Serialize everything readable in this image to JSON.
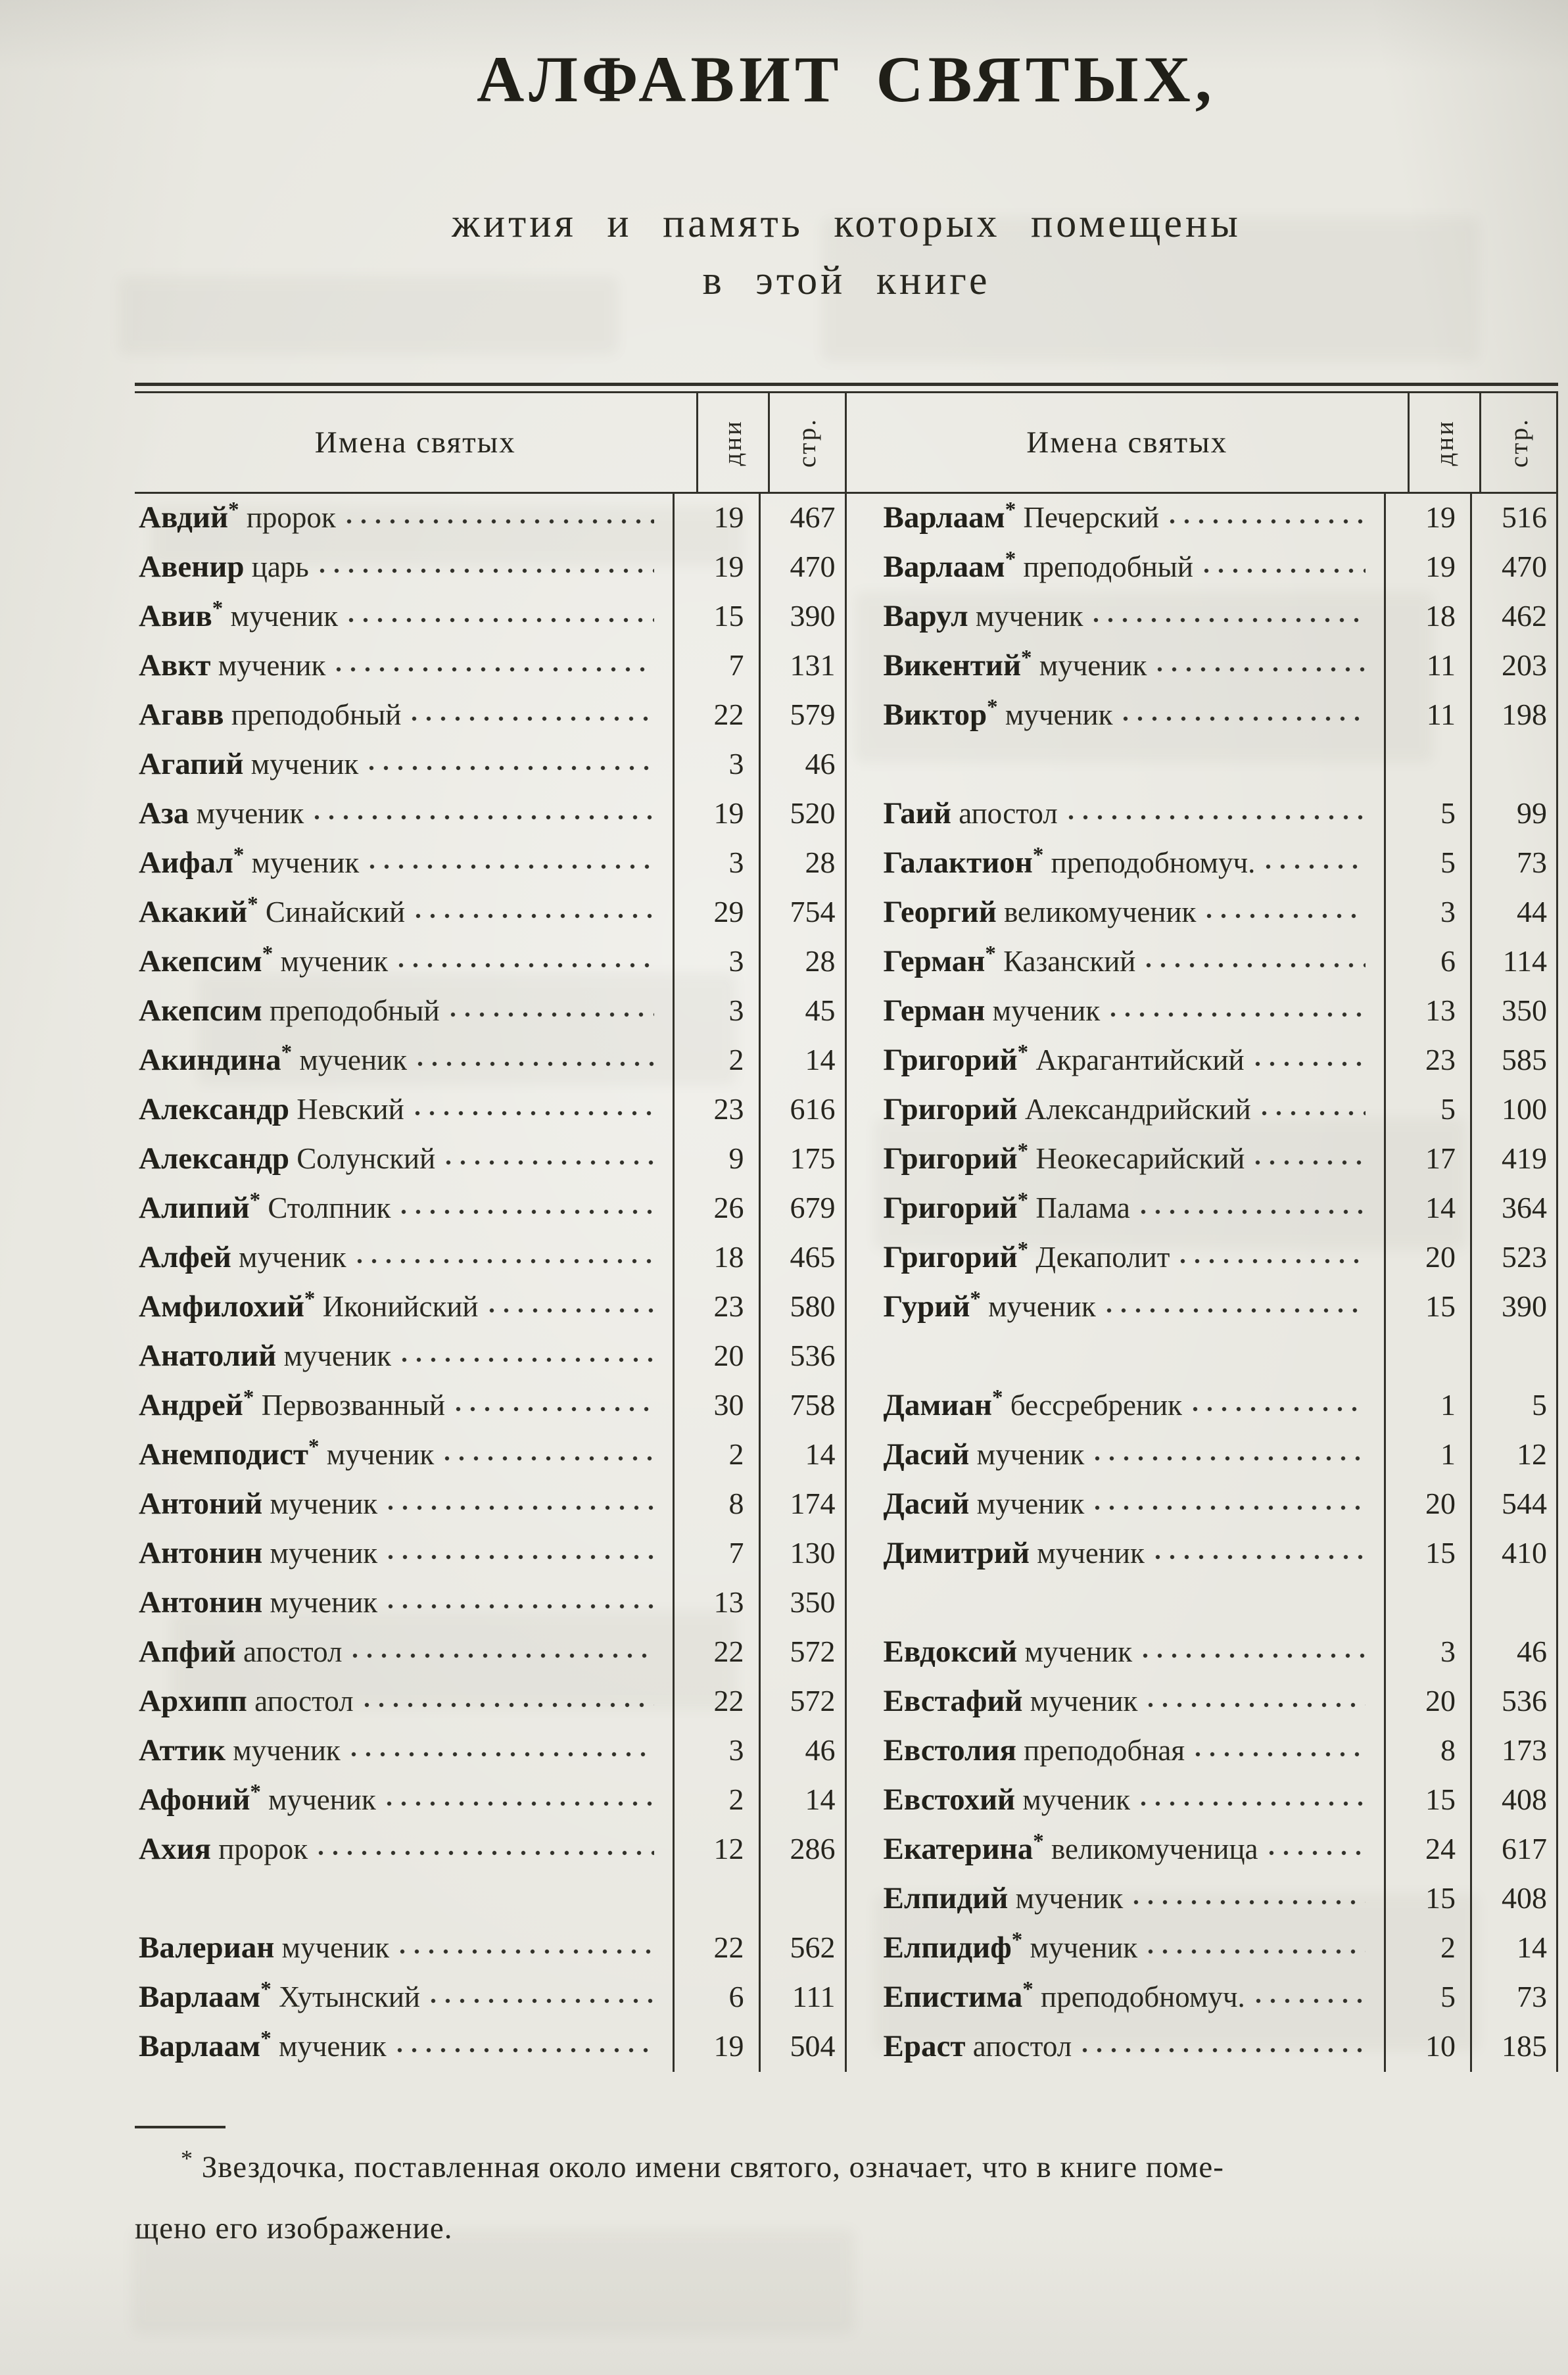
{
  "page": {
    "title": "АЛФАВИТ СВЯТЫХ,",
    "subtitle_line1": "жития и память которых помещены",
    "subtitle_line2": "в этой книге",
    "table_header": {
      "names_label": "Имена святых",
      "days_label": "дни",
      "page_label": "стр."
    },
    "footnote": {
      "marker": "*",
      "line1": "Звездочка, поставленная около имени святого, означает, что в книге поме-",
      "line2": "щено его изображение."
    },
    "ink_color": "#26251e",
    "paper_color": "#e8e7e0"
  },
  "left_rows": [
    {
      "name": "Авдий",
      "star": true,
      "desc": "пророк",
      "day": "19",
      "page": "467"
    },
    {
      "name": "Авенир",
      "star": false,
      "desc": "царь",
      "day": "19",
      "page": "470"
    },
    {
      "name": "Авив",
      "star": true,
      "desc": "мученик",
      "day": "15",
      "page": "390"
    },
    {
      "name": "Авкт",
      "star": false,
      "desc": "мученик",
      "day": "7",
      "page": "131"
    },
    {
      "name": "Агавв",
      "star": false,
      "desc": "преподобный",
      "day": "22",
      "page": "579"
    },
    {
      "name": "Агапий",
      "star": false,
      "desc": "мученик",
      "day": "3",
      "page": "46"
    },
    {
      "name": "Аза",
      "star": false,
      "desc": "мученик",
      "day": "19",
      "page": "520"
    },
    {
      "name": "Аифал",
      "star": true,
      "desc": "мученик",
      "day": "3",
      "page": "28"
    },
    {
      "name": "Акакий",
      "star": true,
      "desc": "Синайский",
      "day": "29",
      "page": "754"
    },
    {
      "name": "Акепсим",
      "star": true,
      "desc": "мученик",
      "day": "3",
      "page": "28"
    },
    {
      "name": "Акепсим",
      "star": false,
      "desc": "преподобный",
      "day": "3",
      "page": "45"
    },
    {
      "name": "Акиндина",
      "star": true,
      "desc": "мученик",
      "day": "2",
      "page": "14"
    },
    {
      "name": "Александр",
      "star": false,
      "desc": "Невский",
      "day": "23",
      "page": "616"
    },
    {
      "name": "Александр",
      "star": false,
      "desc": "Солунский",
      "day": "9",
      "page": "175"
    },
    {
      "name": "Алипий",
      "star": true,
      "desc": "Столпник",
      "day": "26",
      "page": "679"
    },
    {
      "name": "Алфей",
      "star": false,
      "desc": "мученик",
      "day": "18",
      "page": "465"
    },
    {
      "name": "Амфилохий",
      "star": true,
      "desc": "Иконийский",
      "day": "23",
      "page": "580"
    },
    {
      "name": "Анатолий",
      "star": false,
      "desc": "мученик",
      "day": "20",
      "page": "536"
    },
    {
      "name": "Андрей",
      "star": true,
      "desc": "Первозванный",
      "day": "30",
      "page": "758"
    },
    {
      "name": "Анемподист",
      "star": true,
      "desc": "мученик",
      "day": "2",
      "page": "14"
    },
    {
      "name": "Антоний",
      "star": false,
      "desc": "мученик",
      "day": "8",
      "page": "174"
    },
    {
      "name": "Антонин",
      "star": false,
      "desc": "мученик",
      "day": "7",
      "page": "130"
    },
    {
      "name": "Антонин",
      "star": false,
      "desc": "мученик",
      "day": "13",
      "page": "350"
    },
    {
      "name": "Апфий",
      "star": false,
      "desc": "апостол",
      "day": "22",
      "page": "572"
    },
    {
      "name": "Архипп",
      "star": false,
      "desc": "апостол",
      "day": "22",
      "page": "572"
    },
    {
      "name": "Аттик",
      "star": false,
      "desc": "мученик",
      "day": "3",
      "page": "46"
    },
    {
      "name": "Афоний",
      "star": true,
      "desc": "мученик",
      "day": "2",
      "page": "14"
    },
    {
      "name": "Ахия",
      "star": false,
      "desc": "пророк",
      "day": "12",
      "page": "286"
    },
    {
      "gap": true
    },
    {
      "name": "Валериан",
      "star": false,
      "desc": "мученик",
      "day": "22",
      "page": "562"
    },
    {
      "name": "Варлаам",
      "star": true,
      "desc": "Хутынский",
      "day": "6",
      "page": "111"
    },
    {
      "name": "Варлаам",
      "star": true,
      "desc": "мученик",
      "day": "19",
      "page": "504"
    }
  ],
  "right_rows": [
    {
      "name": "Варлаам",
      "star": true,
      "desc": "Печерский",
      "day": "19",
      "page": "516"
    },
    {
      "name": "Варлаам",
      "star": true,
      "desc": "преподобный",
      "day": "19",
      "page": "470"
    },
    {
      "name": "Варул",
      "star": false,
      "desc": "мученик",
      "day": "18",
      "page": "462"
    },
    {
      "name": "Викентий",
      "star": true,
      "desc": "мученик",
      "day": "11",
      "page": "203"
    },
    {
      "name": "Виктор",
      "star": true,
      "desc": "мученик",
      "day": "11",
      "page": "198"
    },
    {
      "gap": true
    },
    {
      "name": "Гаий",
      "star": false,
      "desc": "апостол",
      "day": "5",
      "page": "99"
    },
    {
      "name": "Галактион",
      "star": true,
      "desc": "преподобномуч.",
      "day": "5",
      "page": "73"
    },
    {
      "name": "Георгий",
      "star": false,
      "desc": "великомученик",
      "day": "3",
      "page": "44"
    },
    {
      "name": "Герман",
      "star": true,
      "desc": "Казанский",
      "day": "6",
      "page": "114"
    },
    {
      "name": "Герман",
      "star": false,
      "desc": "мученик",
      "day": "13",
      "page": "350"
    },
    {
      "name": "Григорий",
      "star": true,
      "desc": "Акрагантийский",
      "day": "23",
      "page": "585"
    },
    {
      "name": "Григорий",
      "star": false,
      "desc": "Александрийский",
      "day": "5",
      "page": "100"
    },
    {
      "name": "Григорий",
      "star": true,
      "desc": "Неокесарийский",
      "day": "17",
      "page": "419"
    },
    {
      "name": "Григорий",
      "star": true,
      "desc": "Палама",
      "day": "14",
      "page": "364"
    },
    {
      "name": "Григорий",
      "star": true,
      "desc": "Декаполит",
      "day": "20",
      "page": "523"
    },
    {
      "name": "Гурий",
      "star": true,
      "desc": "мученик",
      "day": "15",
      "page": "390"
    },
    {
      "gap": true
    },
    {
      "name": "Дамиан",
      "star": true,
      "desc": "бессребреник",
      "day": "1",
      "page": "5"
    },
    {
      "name": "Дасий",
      "star": false,
      "desc": "мученик",
      "day": "1",
      "page": "12"
    },
    {
      "name": "Дасий",
      "star": false,
      "desc": "мученик",
      "day": "20",
      "page": "544"
    },
    {
      "name": "Димитрий",
      "star": false,
      "desc": "мученик",
      "day": "15",
      "page": "410"
    },
    {
      "gap": true
    },
    {
      "name": "Евдоксий",
      "star": false,
      "desc": "мученик",
      "day": "3",
      "page": "46"
    },
    {
      "name": "Евстафий",
      "star": false,
      "desc": "мученик",
      "day": "20",
      "page": "536"
    },
    {
      "name": "Евстолия",
      "star": false,
      "desc": "преподобная",
      "day": "8",
      "page": "173"
    },
    {
      "name": "Евстохий",
      "star": false,
      "desc": "мученик",
      "day": "15",
      "page": "408"
    },
    {
      "name": "Екатерина",
      "star": true,
      "desc": "великомученица",
      "day": "24",
      "page": "617"
    },
    {
      "name": "Елпидий",
      "star": false,
      "desc": "мученик",
      "day": "15",
      "page": "408"
    },
    {
      "name": "Елпидиф",
      "star": true,
      "desc": "мученик",
      "day": "2",
      "page": "14"
    },
    {
      "name": "Епистима",
      "star": true,
      "desc": "преподобномуч.",
      "day": "5",
      "page": "73"
    },
    {
      "name": "Ераст",
      "star": false,
      "desc": "апостол",
      "day": "10",
      "page": "185"
    }
  ]
}
